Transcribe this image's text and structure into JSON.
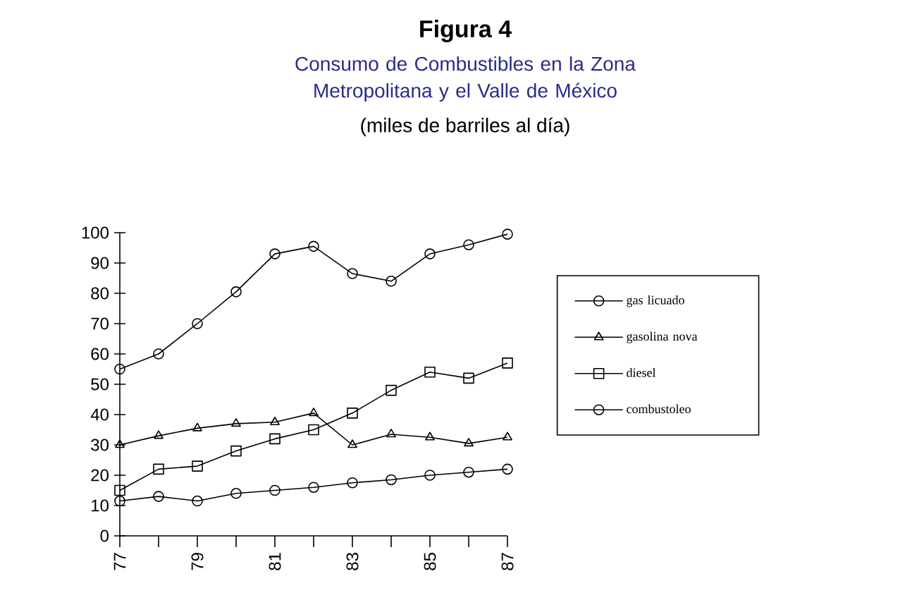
{
  "chart_data": {
    "type": "line",
    "title": "Figura 4",
    "subtitle": "Consumo de Combustibles en la Zona Metropolitana y el Valle de México",
    "annotations": [
      "(miles de barriles al día)"
    ],
    "x": [
      77,
      78,
      79,
      80,
      81,
      82,
      83,
      84,
      85,
      86,
      87
    ],
    "xlim": [
      77,
      87
    ],
    "xticks": [
      77,
      {
        "value": 78,
        "label": null
      },
      79,
      {
        "value": 80,
        "label": null
      },
      81,
      {
        "value": 82,
        "label": null
      },
      83,
      {
        "value": 84,
        "label": null
      },
      85,
      {
        "value": 86,
        "label": null
      },
      87
    ],
    "ylim": [
      0,
      100
    ],
    "yticks": [
      0,
      10,
      20,
      30,
      40,
      50,
      60,
      70,
      80,
      90,
      100
    ],
    "legend": "right",
    "line_style": "solid",
    "series": [
      {
        "name": "gas licuado",
        "color": "#000000",
        "marker": "circle",
        "values": [
          55,
          60,
          70,
          80.5,
          93,
          95.5,
          86.5,
          84,
          93,
          96,
          99.5
        ]
      },
      {
        "name": "gasolina nova",
        "color": "#000000",
        "marker": "triangle",
        "values": [
          30,
          33,
          35.5,
          37,
          37.5,
          40.5,
          30,
          33.5,
          32.5,
          30.5,
          32.5
        ]
      },
      {
        "name": "diesel",
        "color": "#000000",
        "marker": "square",
        "values": [
          15,
          22,
          23,
          28,
          32,
          35,
          40.5,
          48,
          54,
          52,
          57
        ]
      },
      {
        "name": "combustoleo",
        "color": "#000000",
        "marker": "circle",
        "values": [
          11.5,
          13,
          11.5,
          14,
          15,
          16,
          17.5,
          18.5,
          20,
          21,
          22
        ]
      }
    ]
  }
}
